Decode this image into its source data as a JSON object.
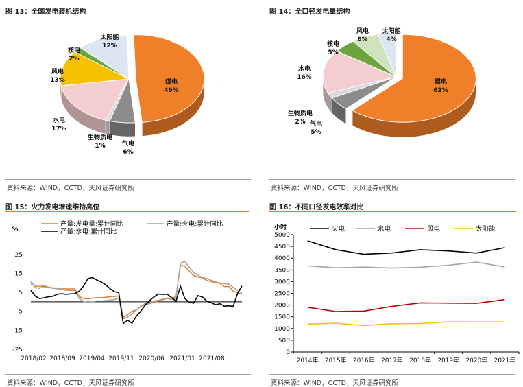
{
  "source_text": "资料来源：WIND，CCTD，天风证券研究所",
  "chart_data": [
    {
      "type": "pie",
      "title_num": "图 13：",
      "title": "全国发电装机结构",
      "categories": [
        "煤电",
        "气电",
        "生物质电",
        "水电",
        "风电",
        "核电",
        "太阳能"
      ],
      "labels": [
        "煤电",
        "气电",
        "生物质电",
        "水电",
        "风电",
        "核电",
        "太阳能"
      ],
      "pct_labels": [
        "49%",
        "6%",
        "1%",
        "17%",
        "13%",
        "2%",
        "12%"
      ],
      "values": [
        49,
        6,
        1,
        17,
        13,
        2,
        12
      ],
      "colors": [
        "#f07f2a",
        "#8c8c8c",
        "#d9d9d9",
        "#f3cdd0",
        "#f6c100",
        "#6ca540",
        "#dce6f2"
      ],
      "explode": "煤电"
    },
    {
      "type": "pie",
      "title_num": "图 14：",
      "title": "全口径发电量结构",
      "categories": [
        "煤电",
        "气电",
        "生物质电",
        "水电",
        "核电",
        "风电",
        "太阳能"
      ],
      "labels": [
        "煤电",
        "气电",
        "生物质电",
        "水电",
        "核电",
        "风电",
        "太阳能"
      ],
      "pct_labels": [
        "62%",
        "5%",
        "2%",
        "16%",
        "5%",
        "6%",
        "4%"
      ],
      "values": [
        62,
        5,
        2,
        16,
        5,
        6,
        4
      ],
      "colors": [
        "#f07f2a",
        "#8c8c8c",
        "#d9d9d9",
        "#f3cdd0",
        "#6ca540",
        "#cfe3bf",
        "#dce6f2"
      ],
      "explode": "煤电"
    },
    {
      "type": "line",
      "title_num": "图 15：",
      "title": "火力发电增速维持高位",
      "ylabel": "%",
      "ylim": [
        -25,
        30
      ],
      "yticks": [
        "25",
        "15",
        "5",
        "-5",
        "-15",
        "-25"
      ],
      "ytick_values": [
        25,
        15,
        5,
        -5,
        -15,
        -25
      ],
      "x_ticks": [
        "2018/02",
        "2018/09",
        "2019/04",
        "2019/11",
        "2020/06",
        "2021/01",
        "2021/08"
      ],
      "x_range": [
        "2018/02",
        "2021/12"
      ],
      "series": [
        {
          "name": "产量:发电量:累计同比",
          "color": "#e8822f",
          "values": [
            9.5,
            8.3,
            8.1,
            8.5,
            7.7,
            7.4,
            7.3,
            7.2,
            6.8,
            6.8,
            6.8,
            2.9,
            1.7,
            1.6,
            2.0,
            2.2,
            2.1,
            2.4,
            2.7,
            2.9,
            3.1,
            -8.2,
            -6.8,
            -4.9,
            -4.3,
            -2.5,
            -1.4,
            -0.9,
            -0.3,
            0.4,
            1.1,
            2.0,
            2.0,
            2.7,
            19.4,
            18.7,
            16.2,
            13.9,
            13.1,
            12.7,
            11.3,
            10.7,
            10.1,
            9.7,
            8.1,
            8.1,
            5.6,
            4.8,
            3.9
          ],
          "points": [
            9.5,
            8.3,
            8.1,
            8.5,
            7.7,
            7.4,
            7.3,
            7.2,
            6.8,
            6.8,
            6.8,
            2.9,
            1.7,
            1.6,
            2.0,
            2.2,
            2.1,
            2.4,
            2.7,
            2.9,
            3.1,
            -8.2,
            -6.8,
            -4.9,
            -4.3,
            -2.5,
            -1.4,
            -0.9,
            -0.3,
            0.4,
            1.1,
            2.0,
            2.0,
            2.7,
            19.4,
            18.7,
            16.2,
            13.9,
            13.1,
            12.7,
            11.3,
            10.7,
            10.1,
            9.7,
            8.1,
            8.1,
            5.6,
            4.8,
            3.9
          ]
        },
        {
          "name": "产量:火电:累计同比",
          "color": "#a6a6a6",
          "values": [
            11.0,
            7.5,
            7.2,
            8.0,
            7.5,
            7.2,
            6.9,
            6.5,
            6.1,
            6.0,
            6.0,
            1.7,
            0.2,
            -0.3,
            0.0,
            0.5,
            0.4,
            0.7,
            0.9,
            1.2,
            1.9,
            -8.9,
            -8.0,
            -6.3,
            -4.3,
            -2.3,
            -0.9,
            -0.6,
            0.5,
            0.8,
            1.5,
            1.7,
            1.2,
            1.8,
            20.4,
            21.2,
            18.4,
            15.5,
            14.0,
            12.9,
            12.3,
            11.4,
            10.6,
            9.9,
            9.6,
            9.5,
            7.6,
            6.0,
            4.6
          ],
          "points": [
            11.0,
            7.5,
            7.2,
            8.0,
            7.5,
            7.2,
            6.9,
            6.5,
            6.1,
            6.0,
            6.0,
            1.7,
            0.2,
            -0.3,
            0.0,
            0.5,
            0.4,
            0.7,
            0.9,
            1.2,
            1.9,
            -8.9,
            -8.0,
            -6.3,
            -4.3,
            -2.3,
            -0.9,
            -0.6,
            0.5,
            0.8,
            1.5,
            1.7,
            1.2,
            1.8,
            20.4,
            21.2,
            18.4,
            15.5,
            14.0,
            12.9,
            12.3,
            11.4,
            10.6,
            9.9,
            9.6,
            9.5,
            7.6,
            6.0,
            4.6
          ]
        },
        {
          "name": "产量:水电:累计同比",
          "color": "#000000",
          "values": [
            6.0,
            3.0,
            1.7,
            2.1,
            2.7,
            2.9,
            4.0,
            4.3,
            4.0,
            4.2,
            4.3,
            5.6,
            8.4,
            12.3,
            12.8,
            11.5,
            10.5,
            9.0,
            7.0,
            5.4,
            4.8,
            -11.5,
            -9.7,
            -11.3,
            -7.5,
            -4.9,
            -1.8,
            0.7,
            2.6,
            4.1,
            3.9,
            4.1,
            2.2,
            0.3,
            8.3,
            1.8,
            -0.2,
            -0.7,
            3.3,
            2.5,
            0.4,
            -0.5,
            -1.5,
            -1.0,
            -2.3,
            -2.1,
            -2.4,
            4.5,
            8.4
          ],
          "points": [
            6.0,
            3.0,
            1.7,
            2.1,
            2.7,
            2.9,
            4.0,
            4.3,
            4.0,
            4.2,
            4.3,
            5.6,
            8.4,
            12.3,
            12.8,
            11.5,
            10.5,
            9.0,
            7.0,
            5.4,
            4.8,
            -11.5,
            -9.7,
            -11.3,
            -7.5,
            -4.9,
            -1.8,
            0.7,
            2.6,
            4.1,
            3.9,
            4.1,
            2.2,
            0.3,
            8.3,
            1.8,
            -0.2,
            -0.7,
            3.3,
            2.5,
            0.4,
            -0.5,
            -1.5,
            -1.0,
            -2.3,
            -2.1,
            -2.4,
            4.5,
            8.4
          ]
        }
      ]
    },
    {
      "type": "line",
      "title_num": "图 16：",
      "title": "不同口径发电效率对比",
      "ylabel": "小时",
      "ylim": [
        0,
        5000
      ],
      "yticks": [
        "5000",
        "4500",
        "4000",
        "3500",
        "3000",
        "2500",
        "2000",
        "1500",
        "1000",
        "500",
        "0"
      ],
      "ytick_values": [
        5000,
        4500,
        4000,
        3500,
        3000,
        2500,
        2000,
        1500,
        1000,
        500,
        0
      ],
      "categories": [
        "2014年",
        "2015年",
        "2016年",
        "2017年",
        "2018年",
        "2019年",
        "2020年",
        "2021年"
      ],
      "series": [
        {
          "name": "火电",
          "color": "#000000",
          "values": [
            4739,
            4364,
            4165,
            4219,
            4361,
            4307,
            4216,
            4448
          ]
        },
        {
          "name": "水电",
          "color": "#a6a6a6",
          "values": [
            3669,
            3590,
            3619,
            3579,
            3613,
            3697,
            3827,
            3622
          ]
        },
        {
          "name": "风电",
          "color": "#c00000",
          "values": [
            1905,
            1724,
            1742,
            1948,
            2095,
            2082,
            2073,
            2232
          ]
        },
        {
          "name": "太阳能",
          "color": "#f6c100",
          "values": [
            1190,
            1225,
            1129,
            1204,
            1212,
            1285,
            1281,
            1281
          ]
        }
      ]
    }
  ]
}
